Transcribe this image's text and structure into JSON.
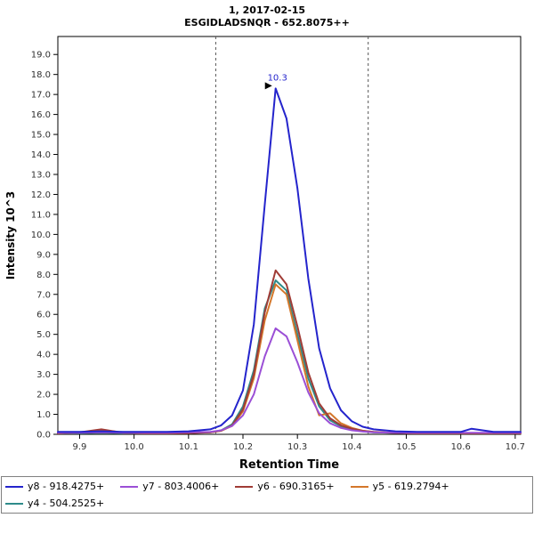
{
  "chart_data": {
    "type": "line",
    "title_line1": "1, 2017-02-15",
    "title_line2": "ESGIDLADSNQR - 652.8075++",
    "xlabel": "Retention Time",
    "ylabel": "Intensity 10^3",
    "xlim": [
      9.86,
      10.71
    ],
    "ylim": [
      0,
      19.9
    ],
    "xticks": [
      9.9,
      10.0,
      10.1,
      10.2,
      10.3,
      10.4,
      10.5,
      10.6,
      10.7
    ],
    "yticks": [
      0,
      1,
      2,
      3,
      4,
      5,
      6,
      7,
      8,
      9,
      10,
      11,
      12,
      13,
      14,
      15,
      16,
      17,
      18,
      19
    ],
    "grid": false,
    "legend_position": "bottom",
    "integration_boundaries": [
      10.15,
      10.43
    ],
    "peak_annotation": {
      "label": "10.3",
      "x": 10.26,
      "y": 17.3
    },
    "annotation_color": "#2424cc",
    "x": [
      9.86,
      9.9,
      9.94,
      9.98,
      10.02,
      10.06,
      10.1,
      10.14,
      10.16,
      10.18,
      10.2,
      10.22,
      10.24,
      10.26,
      10.28,
      10.3,
      10.32,
      10.34,
      10.36,
      10.38,
      10.4,
      10.42,
      10.44,
      10.48,
      10.52,
      10.56,
      10.6,
      10.62,
      10.66,
      10.71
    ],
    "series": [
      {
        "id": "y8",
        "name": "y8 - 918.4275+",
        "color": "#2424cc",
        "y": [
          0.12,
          0.12,
          0.15,
          0.12,
          0.12,
          0.12,
          0.15,
          0.25,
          0.45,
          0.95,
          2.2,
          5.5,
          11.5,
          17.3,
          15.8,
          12.3,
          7.8,
          4.3,
          2.3,
          1.2,
          0.65,
          0.38,
          0.25,
          0.15,
          0.12,
          0.12,
          0.12,
          0.28,
          0.12,
          0.12
        ]
      },
      {
        "id": "y7",
        "name": "y7 - 803.4006+",
        "color": "#9b4fd6",
        "y": [
          0.08,
          0.08,
          0.1,
          0.08,
          0.08,
          0.08,
          0.1,
          0.12,
          0.2,
          0.42,
          0.95,
          2.0,
          3.9,
          5.3,
          4.9,
          3.6,
          2.1,
          1.05,
          0.55,
          0.32,
          0.2,
          0.14,
          0.1,
          0.08,
          0.08,
          0.08,
          0.08,
          0.08,
          0.08,
          0.08
        ]
      },
      {
        "id": "y6",
        "name": "y6 - 690.3165+",
        "color": "#a03c36",
        "y": [
          0.05,
          0.1,
          0.25,
          0.08,
          0.05,
          0.05,
          0.06,
          0.1,
          0.18,
          0.45,
          1.25,
          3.0,
          6.1,
          8.2,
          7.5,
          5.4,
          3.1,
          1.55,
          0.8,
          0.45,
          0.28,
          0.18,
          0.12,
          0.07,
          0.05,
          0.05,
          0.05,
          0.05,
          0.05,
          0.05
        ]
      },
      {
        "id": "y5",
        "name": "y5 - 619.2794+",
        "color": "#d4772a",
        "y": [
          0.06,
          0.09,
          0.22,
          0.08,
          0.06,
          0.06,
          0.08,
          0.1,
          0.18,
          0.42,
          1.15,
          2.8,
          5.7,
          7.5,
          7.0,
          4.7,
          2.4,
          0.95,
          1.05,
          0.55,
          0.32,
          0.18,
          0.11,
          0.07,
          0.06,
          0.06,
          0.06,
          0.06,
          0.06,
          0.06
        ]
      },
      {
        "id": "y4",
        "name": "y4 - 504.2525+",
        "color": "#2e8b8a",
        "y": [
          0.06,
          0.06,
          0.08,
          0.06,
          0.06,
          0.06,
          0.08,
          0.1,
          0.2,
          0.5,
          1.4,
          3.2,
          6.3,
          7.7,
          7.2,
          5.0,
          2.8,
          1.4,
          0.7,
          0.4,
          0.24,
          0.15,
          0.1,
          0.07,
          0.06,
          0.06,
          0.06,
          0.06,
          0.06,
          0.06
        ]
      }
    ]
  }
}
